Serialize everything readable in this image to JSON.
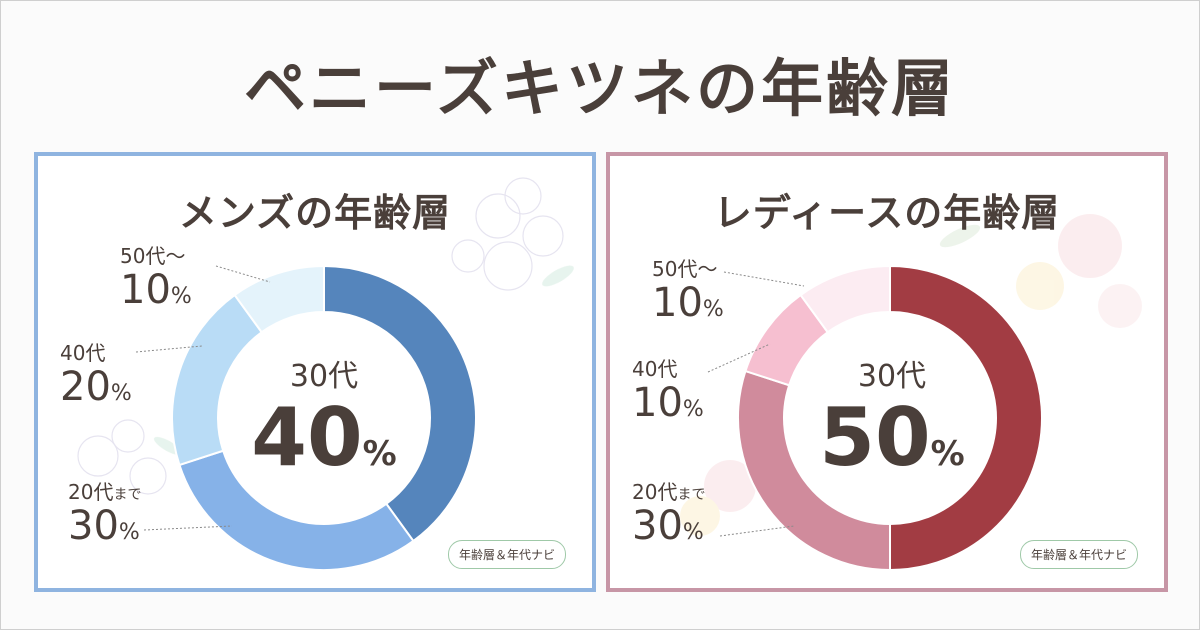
{
  "title": "ペニーズキツネの年齢層",
  "colors": {
    "men_border": "#8fb4e0",
    "women_border": "#c796a6"
  },
  "chart_data": [
    {
      "type": "pie",
      "title": "メンズの年齢層",
      "center_label": "30代",
      "center_value": "40",
      "unit": "%",
      "slices": [
        {
          "label": "30代",
          "value": 40,
          "color": "#5585bc"
        },
        {
          "label": "20代まで",
          "value": 30,
          "color": "#86b2e8"
        },
        {
          "label": "40代",
          "value": 20,
          "color": "#b9dcf6"
        },
        {
          "label": "50代～",
          "value": 10,
          "color": "#e4f3fb"
        }
      ],
      "labels": [
        {
          "age": "50代～",
          "pct": "10"
        },
        {
          "age": "40代",
          "pct": "20"
        },
        {
          "age": "20代",
          "age_suffix": "まで",
          "pct": "30"
        }
      ],
      "badge": "年齢層＆年代ナビ"
    },
    {
      "type": "pie",
      "title": "レディースの年齢層",
      "center_label": "30代",
      "center_value": "50",
      "unit": "%",
      "slices": [
        {
          "label": "30代",
          "value": 50,
          "color": "#a23c43"
        },
        {
          "label": "20代まで",
          "value": 30,
          "color": "#d08b9c"
        },
        {
          "label": "40代",
          "value": 10,
          "color": "#f6bfd0"
        },
        {
          "label": "50代～",
          "value": 10,
          "color": "#fcecf2"
        }
      ],
      "labels": [
        {
          "age": "50代～",
          "pct": "10"
        },
        {
          "age": "40代",
          "pct": "10"
        },
        {
          "age": "20代",
          "age_suffix": "まで",
          "pct": "30"
        }
      ],
      "badge": "年齢層＆年代ナビ"
    }
  ]
}
